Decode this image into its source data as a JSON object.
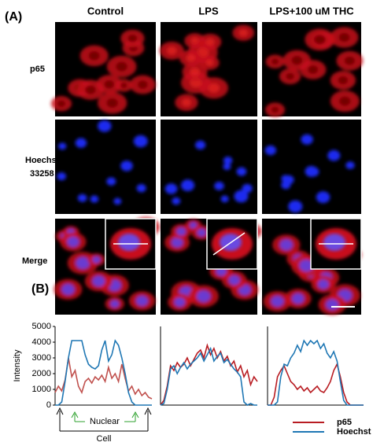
{
  "panels": [
    "(A)",
    "(B)"
  ],
  "columns": [
    "Control",
    "LPS",
    "LPS+100 uM THC"
  ],
  "rows": [
    [
      "p65"
    ],
    [
      "Hoechst",
      "33258"
    ],
    [
      "Merge"
    ]
  ],
  "chart_data": [
    {
      "type": "line",
      "y_label": "Intensity",
      "annotations": [
        "Nuclear",
        "Cell"
      ],
      "ylim": [
        0,
        5000
      ],
      "yticks": [
        0,
        1000,
        2000,
        3000,
        4000,
        5000
      ],
      "series": [
        {
          "color": "#c0504d",
          "values": [
            800,
            1200,
            900,
            1600,
            3000,
            1800,
            2200,
            1200,
            800,
            1500,
            1700,
            1400,
            1800,
            1600,
            1900,
            1500,
            2400,
            1700,
            2000,
            1500,
            2600,
            1700,
            900,
            1200,
            700,
            1000,
            600,
            800,
            500,
            400
          ]
        },
        {
          "color": "#1f77b4",
          "values": [
            0,
            0,
            200,
            1500,
            3000,
            4100,
            4100,
            4100,
            4100,
            3200,
            2600,
            2400,
            2300,
            2500,
            3500,
            4100,
            2800,
            3200,
            4100,
            3800,
            3000,
            2000,
            800,
            200,
            0,
            0,
            0,
            0,
            0,
            0
          ]
        }
      ]
    },
    {
      "type": "line",
      "ylim": [
        0,
        5000
      ],
      "series": [
        {
          "color": "#b81c22",
          "values": [
            0,
            300,
            1200,
            2500,
            2200,
            2700,
            2400,
            2600,
            3000,
            2500,
            2900,
            3300,
            3500,
            3000,
            3800,
            3200,
            3600,
            3000,
            3400,
            2800,
            3100,
            2500,
            2800,
            2100,
            2500,
            1800,
            2200,
            1300,
            1800,
            1500
          ]
        },
        {
          "color": "#1f77b4",
          "values": [
            0,
            100,
            1000,
            2300,
            2500,
            2000,
            2400,
            2700,
            2300,
            2600,
            2800,
            3000,
            3300,
            2800,
            3200,
            3600,
            2800,
            3100,
            3300,
            2700,
            2900,
            2600,
            2300,
            2100,
            1800,
            200,
            0,
            100,
            0,
            0
          ]
        }
      ]
    },
    {
      "type": "line",
      "ylim": [
        0,
        5000
      ],
      "series": [
        {
          "name": "p65",
          "color": "#b81c22",
          "values": [
            0,
            0,
            500,
            1800,
            2200,
            2500,
            2000,
            1500,
            1300,
            1000,
            1200,
            900,
            1100,
            800,
            1000,
            1200,
            900,
            800,
            1100,
            1500,
            2200,
            2600,
            1800,
            800,
            200,
            0,
            0,
            0,
            0,
            0
          ]
        },
        {
          "name": "Hoechst",
          "color": "#1f77b4",
          "values": [
            0,
            0,
            0,
            200,
            1800,
            2600,
            2500,
            3000,
            3300,
            3800,
            3400,
            4100,
            3800,
            4100,
            3900,
            4100,
            3600,
            3900,
            3300,
            3000,
            3400,
            2800,
            1500,
            300,
            0,
            0,
            0,
            0,
            0,
            0
          ]
        }
      ]
    }
  ]
}
